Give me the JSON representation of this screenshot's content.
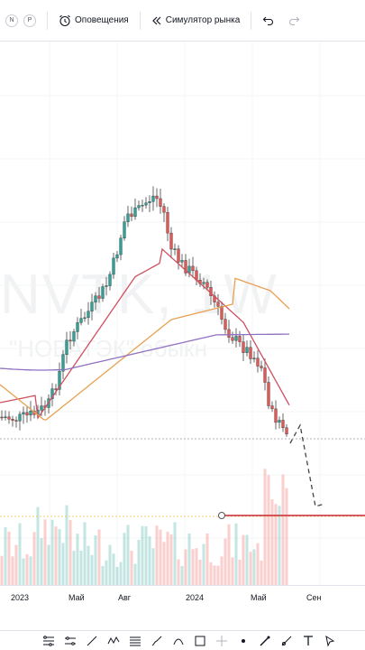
{
  "toolbar": {
    "chip_left": "N",
    "chip_right": "P",
    "alerts_label": "Оповещения",
    "simulator_label": "Симулятор рынка",
    "icons": [
      "alarm-clock-icon",
      "rewind-icon",
      "undo-icon",
      "redo-icon"
    ]
  },
  "watermark": {
    "ticker": "NVTK, 1W",
    "name": "\"НОВАТЭК\" обыкн"
  },
  "time_axis": {
    "ticks": [
      "2023",
      "Май",
      "Авг",
      "2024",
      "Май",
      "Сен"
    ]
  },
  "drawing_tools": [
    "multi-line-icon",
    "channel-icon",
    "trend-line-icon",
    "pattern-icon",
    "fib-icon",
    "brush-icon",
    "shape-icon",
    "rectangle-icon",
    "crosshair-icon",
    "dot-icon",
    "pen-icon",
    "brush2-icon",
    "text-icon",
    "cursor-icon"
  ],
  "chart_data": {
    "type": "candlestick",
    "x_axis_ticks": [
      "2023",
      "Май",
      "Авг",
      "2024",
      "Май",
      "Сен"
    ],
    "indicators": [
      {
        "color": "#d05060",
        "type": "moving-average"
      },
      {
        "color": "#e8a050",
        "type": "moving-average"
      },
      {
        "color": "#9070c0",
        "type": "moving-average"
      }
    ],
    "horizontal_line": {
      "color": "#c8283c"
    },
    "projection": {
      "style": "dashed",
      "direction": "down"
    }
  }
}
